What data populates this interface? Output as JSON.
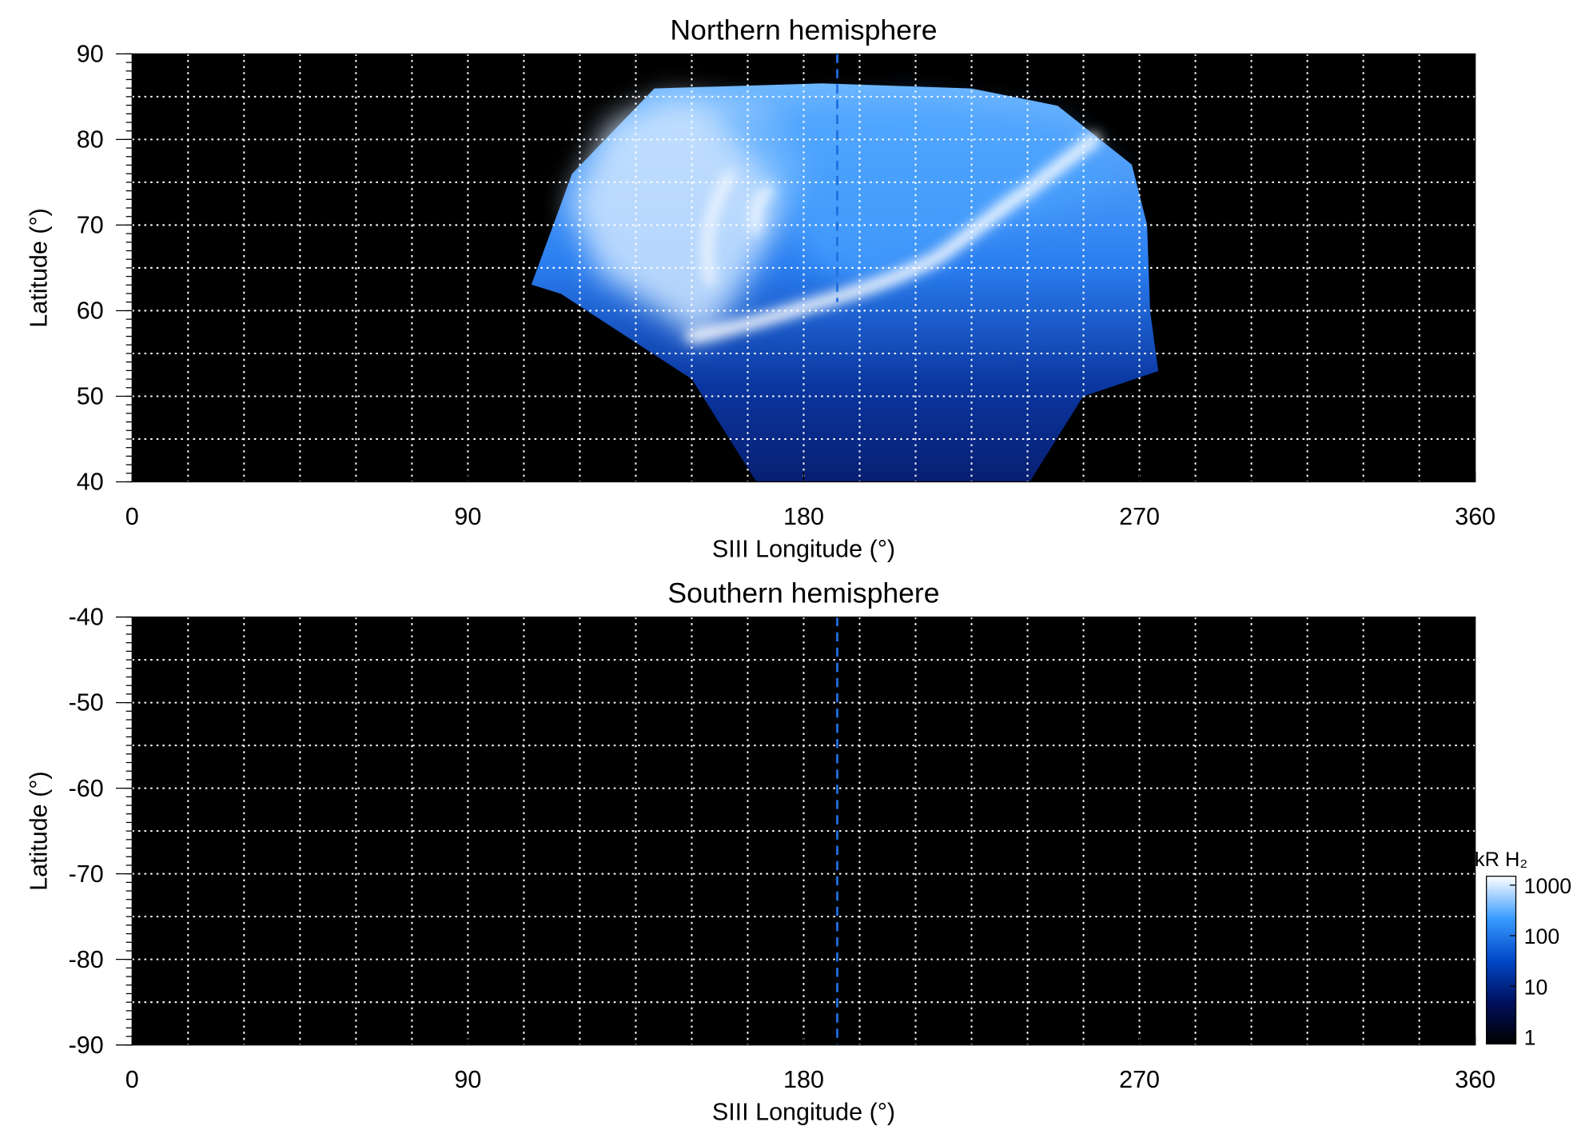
{
  "chart_data": [
    {
      "type": "heatmap",
      "title": "Northern hemisphere",
      "x_label": "SIII Longitude (°)",
      "y_label": "Latitude (°)",
      "xlim": [
        0,
        360
      ],
      "ylim": [
        40,
        90
      ],
      "xticks": [
        0,
        90,
        180,
        270,
        360
      ],
      "yticks": [
        40,
        50,
        60,
        70,
        80,
        90
      ],
      "xgrid": [
        15,
        30,
        45,
        60,
        75,
        90,
        105,
        120,
        135,
        150,
        165,
        180,
        195,
        210,
        225,
        240,
        255,
        270,
        285,
        300,
        315,
        330,
        345
      ],
      "ygrid": [
        45,
        50,
        55,
        60,
        65,
        70,
        75,
        80,
        85
      ],
      "reference_line": {
        "x": 189,
        "y": [
          61,
          90
        ]
      }
    },
    {
      "type": "heatmap",
      "title": "Southern hemisphere",
      "x_label": "SIII Longitude (°)",
      "y_label": "Latitude (°)",
      "xlim": [
        0,
        360
      ],
      "ylim": [
        -90,
        -40
      ],
      "xticks": [
        0,
        90,
        180,
        270,
        360
      ],
      "yticks": [
        -90,
        -80,
        -70,
        -60,
        -50,
        -40
      ],
      "xgrid": [
        15,
        30,
        45,
        60,
        75,
        90,
        105,
        120,
        135,
        150,
        165,
        180,
        195,
        210,
        225,
        240,
        255,
        270,
        285,
        300,
        315,
        330,
        345
      ],
      "ygrid": [
        -85,
        -80,
        -75,
        -70,
        -65,
        -60,
        -55,
        -50,
        -45
      ],
      "reference_line": {
        "x": 189,
        "y": [
          -90,
          -40
        ]
      }
    }
  ],
  "colorbar": {
    "label": "kR H₂",
    "scale": "log",
    "lim": [
      0.72,
      1500
    ],
    "ticks": [
      1,
      10,
      100,
      1000
    ],
    "colors": [
      "#000000",
      "#00105e",
      "#0048c8",
      "#3a9cff",
      "#ffffff"
    ]
  }
}
